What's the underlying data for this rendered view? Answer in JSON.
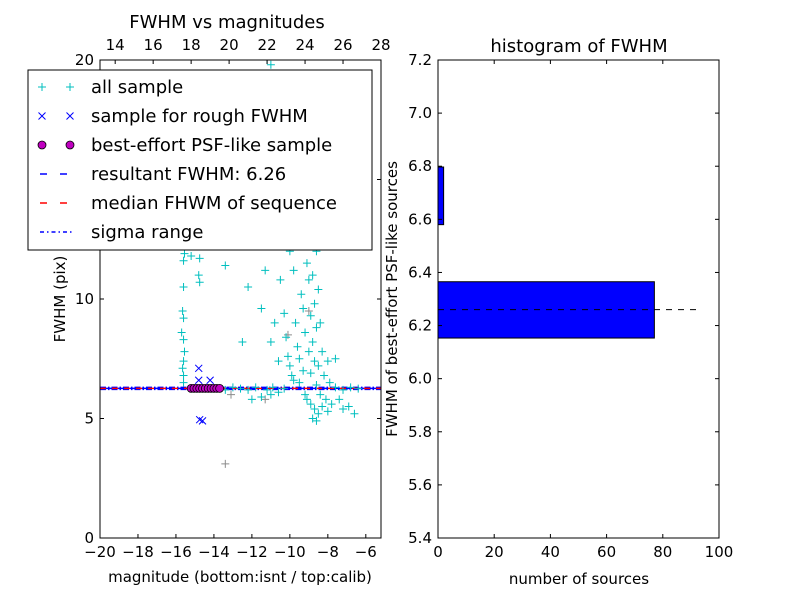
{
  "chart_data": [
    {
      "type": "scatter",
      "title": "FWHM vs magnitudes",
      "xlabel": "magnitude (bottom:isnt / top:calib)",
      "ylabel": "FWHM (pix)",
      "xlim": [
        -20,
        -5.2
      ],
      "ylim": [
        0,
        20
      ],
      "xticks": [
        -20,
        -18,
        -16,
        -14,
        -12,
        -10,
        -8,
        -6
      ],
      "xtick_labels": [
        "−20",
        "−18",
        "−16",
        "−14",
        "−12",
        "−10",
        "−8",
        "−6"
      ],
      "top_xlim": [
        13.2,
        28
      ],
      "top_xticks": [
        14,
        16,
        18,
        20,
        22,
        24,
        26,
        28
      ],
      "top_xtick_labels": [
        "14",
        "16",
        "18",
        "20",
        "22",
        "24",
        "26",
        "28"
      ],
      "yticks": [
        0,
        5,
        10,
        15,
        20
      ],
      "ytick_labels": [
        "0",
        "5",
        "10",
        "15",
        "20"
      ],
      "legend_position": "upper-left",
      "legend": [
        {
          "label": "all sample",
          "style": "plus",
          "color": "#00bfbf"
        },
        {
          "label": "sample for rough FWHM",
          "style": "x",
          "color": "#0000ff"
        },
        {
          "label": "best-effort PSF-like sample",
          "style": "circle",
          "color": "#bf00bf"
        },
        {
          "label": "resultant FWHM: 6.26",
          "style": "dashed",
          "color": "#0000ff"
        },
        {
          "label": "median FHWM of sequence",
          "style": "dashed",
          "color": "#ff0000"
        },
        {
          "label": "sigma range",
          "style": "dashdot",
          "color": "#0000ff"
        }
      ],
      "series": {
        "all_sample": [
          [
            -15.6,
            6.5
          ],
          [
            -15.6,
            6.8
          ],
          [
            -15.65,
            7.1
          ],
          [
            -15.6,
            7.4
          ],
          [
            -15.55,
            7.8
          ],
          [
            -15.6,
            8.3
          ],
          [
            -15.7,
            8.6
          ],
          [
            -15.6,
            9.2
          ],
          [
            -15.65,
            9.5
          ],
          [
            -15.6,
            10.5
          ],
          [
            -15.6,
            11.6
          ],
          [
            -15.55,
            11.9
          ],
          [
            -15.6,
            12.3
          ],
          [
            -15.6,
            12.6
          ],
          [
            -15.65,
            13.0
          ],
          [
            -15.6,
            13.5
          ],
          [
            -15.6,
            15
          ],
          [
            -15.6,
            17
          ],
          [
            -15.55,
            19
          ],
          [
            -15.3,
            12.4
          ],
          [
            -15.2,
            11.8
          ],
          [
            -14.75,
            11.7
          ],
          [
            -14.8,
            11.0
          ],
          [
            -14.75,
            10.7
          ],
          [
            -13.4,
            11.4
          ],
          [
            -13.4,
            6.2
          ],
          [
            -13.0,
            6.3
          ],
          [
            -12.6,
            6.25
          ],
          [
            -12.2,
            6.2
          ],
          [
            -11.8,
            6.3
          ],
          [
            -11.5,
            5.9
          ],
          [
            -11.2,
            6.2
          ],
          [
            -10.9,
            6.3
          ],
          [
            -10.6,
            6.1
          ],
          [
            -10.3,
            6.25
          ],
          [
            -7.6,
            6.3
          ],
          [
            -7.2,
            6.2
          ],
          [
            -6.8,
            6.3
          ],
          [
            -6.4,
            6.25
          ],
          [
            -12.0,
            5.8
          ],
          [
            -11.0,
            6.0
          ],
          [
            -10.2,
            8.4
          ],
          [
            -10.1,
            7.6
          ],
          [
            -10.0,
            7.2
          ],
          [
            -9.9,
            6.8
          ],
          [
            -9.8,
            6.6
          ],
          [
            -9.7,
            9.0
          ],
          [
            -9.6,
            8.0
          ],
          [
            -9.5,
            7.5
          ],
          [
            -9.5,
            6.5
          ],
          [
            -9.4,
            10.2
          ],
          [
            -9.3,
            9.6
          ],
          [
            -9.3,
            7.0
          ],
          [
            -9.2,
            8.6
          ],
          [
            -9.2,
            6.0
          ],
          [
            -9.1,
            11.5
          ],
          [
            -9.1,
            5.8
          ],
          [
            -9.0,
            12.5
          ],
          [
            -9.0,
            10.8
          ],
          [
            -9.0,
            7.8
          ],
          [
            -8.9,
            9.3
          ],
          [
            -8.9,
            6.9
          ],
          [
            -8.9,
            5.6
          ],
          [
            -8.8,
            13.5
          ],
          [
            -8.8,
            11.0
          ],
          [
            -8.8,
            8.2
          ],
          [
            -8.7,
            9.8
          ],
          [
            -8.7,
            7.4
          ],
          [
            -8.7,
            5.4
          ],
          [
            -8.6,
            12.0
          ],
          [
            -8.6,
            8.8
          ],
          [
            -8.6,
            6.4
          ],
          [
            -8.5,
            10.4
          ],
          [
            -8.5,
            7.2
          ],
          [
            -8.5,
            5.2
          ],
          [
            -8.4,
            9.0
          ],
          [
            -8.4,
            6.0
          ],
          [
            -8.3,
            7.8
          ],
          [
            -8.3,
            5.5
          ],
          [
            -8.2,
            6.8
          ],
          [
            -8.1,
            5.8
          ],
          [
            -8.0,
            7.4
          ],
          [
            -8.0,
            5.3
          ],
          [
            -7.9,
            6.5
          ],
          [
            -7.8,
            5.6
          ],
          [
            -7.6,
            7.5
          ],
          [
            -7.4,
            5.8
          ],
          [
            -7.2,
            5.4
          ],
          [
            -6.9,
            5.5
          ],
          [
            -6.6,
            5.2
          ],
          [
            -8.8,
            5.0
          ],
          [
            -8.6,
            4.9
          ],
          [
            -9.5,
            12.8
          ],
          [
            -9.6,
            14.0
          ],
          [
            -9.4,
            15.0
          ],
          [
            -9.2,
            16.5
          ],
          [
            -9.0,
            13.8
          ],
          [
            -8.9,
            14.5
          ],
          [
            -9.8,
            11.2
          ],
          [
            -10.3,
            9.4
          ],
          [
            -10.5,
            10.8
          ],
          [
            -10.8,
            9.0
          ],
          [
            -10.6,
            7.4
          ],
          [
            -11.0,
            8.2
          ],
          [
            -11.3,
            11.2
          ],
          [
            -11.5,
            9.6
          ],
          [
            -12.2,
            10.5
          ],
          [
            -12.5,
            8.2
          ],
          [
            -9.8,
            13.2
          ],
          [
            -9.7,
            17.5
          ],
          [
            -11.2,
            20
          ],
          [
            -11.0,
            19.8
          ],
          [
            -9.4,
            18.5
          ],
          [
            -10.0,
            12.0
          ]
        ],
        "unlabeled_gray": [
          [
            -13.4,
            3.1
          ],
          [
            -10.1,
            8.5
          ],
          [
            -13.1,
            6.0
          ],
          [
            -9.5,
            16.2
          ],
          [
            -9.0,
            9.5
          ],
          [
            -11.3,
            5.8
          ]
        ],
        "rough_sample": [
          [
            -14.8,
            7.1
          ],
          [
            -14.8,
            6.6
          ],
          [
            -14.2,
            6.6
          ],
          [
            -14.75,
            4.95
          ],
          [
            -14.6,
            4.9
          ]
        ],
        "psf_like_sample": [
          [
            -15.2,
            6.26
          ],
          [
            -15.05,
            6.26
          ],
          [
            -14.9,
            6.26
          ],
          [
            -14.75,
            6.26
          ],
          [
            -14.6,
            6.26
          ],
          [
            -14.45,
            6.26
          ],
          [
            -14.3,
            6.26
          ],
          [
            -14.15,
            6.26
          ],
          [
            -14.0,
            6.26
          ],
          [
            -13.85,
            6.26
          ],
          [
            -13.7,
            6.26
          ]
        ]
      },
      "resultant_fwhm": 6.26,
      "median_fwhm": 6.26,
      "sigma_range": [
        6.22,
        6.3
      ]
    },
    {
      "type": "bar",
      "orientation": "horizontal",
      "title": "histogram of FWHM",
      "xlabel": "number of sources",
      "ylabel": "FWHM of best-effort PSF-like sources",
      "xlim": [
        0,
        100
      ],
      "ylim": [
        5.4,
        7.2
      ],
      "xticks": [
        0,
        20,
        40,
        60,
        80,
        100
      ],
      "xtick_labels": [
        "0",
        "20",
        "40",
        "60",
        "80",
        "100"
      ],
      "yticks": [
        5.4,
        5.6,
        5.8,
        6.0,
        6.2,
        6.4,
        6.6,
        6.8,
        7.0,
        7.2
      ],
      "ytick_labels": [
        "5.4",
        "5.6",
        "5.8",
        "6.0",
        "6.2",
        "6.4",
        "6.6",
        "6.8",
        "7.0",
        "7.2"
      ],
      "bars": [
        {
          "bin": [
            6.153,
            6.365
          ],
          "count": 77
        },
        {
          "bin": [
            6.365,
            6.58
          ],
          "count": 0
        },
        {
          "bin": [
            6.58,
            6.797
          ],
          "count": 2
        }
      ],
      "bar_color": "#0000ff",
      "reference_line": {
        "y": 6.26,
        "x_range": [
          0,
          92
        ],
        "style": "dashed",
        "color": "#000000"
      }
    }
  ]
}
